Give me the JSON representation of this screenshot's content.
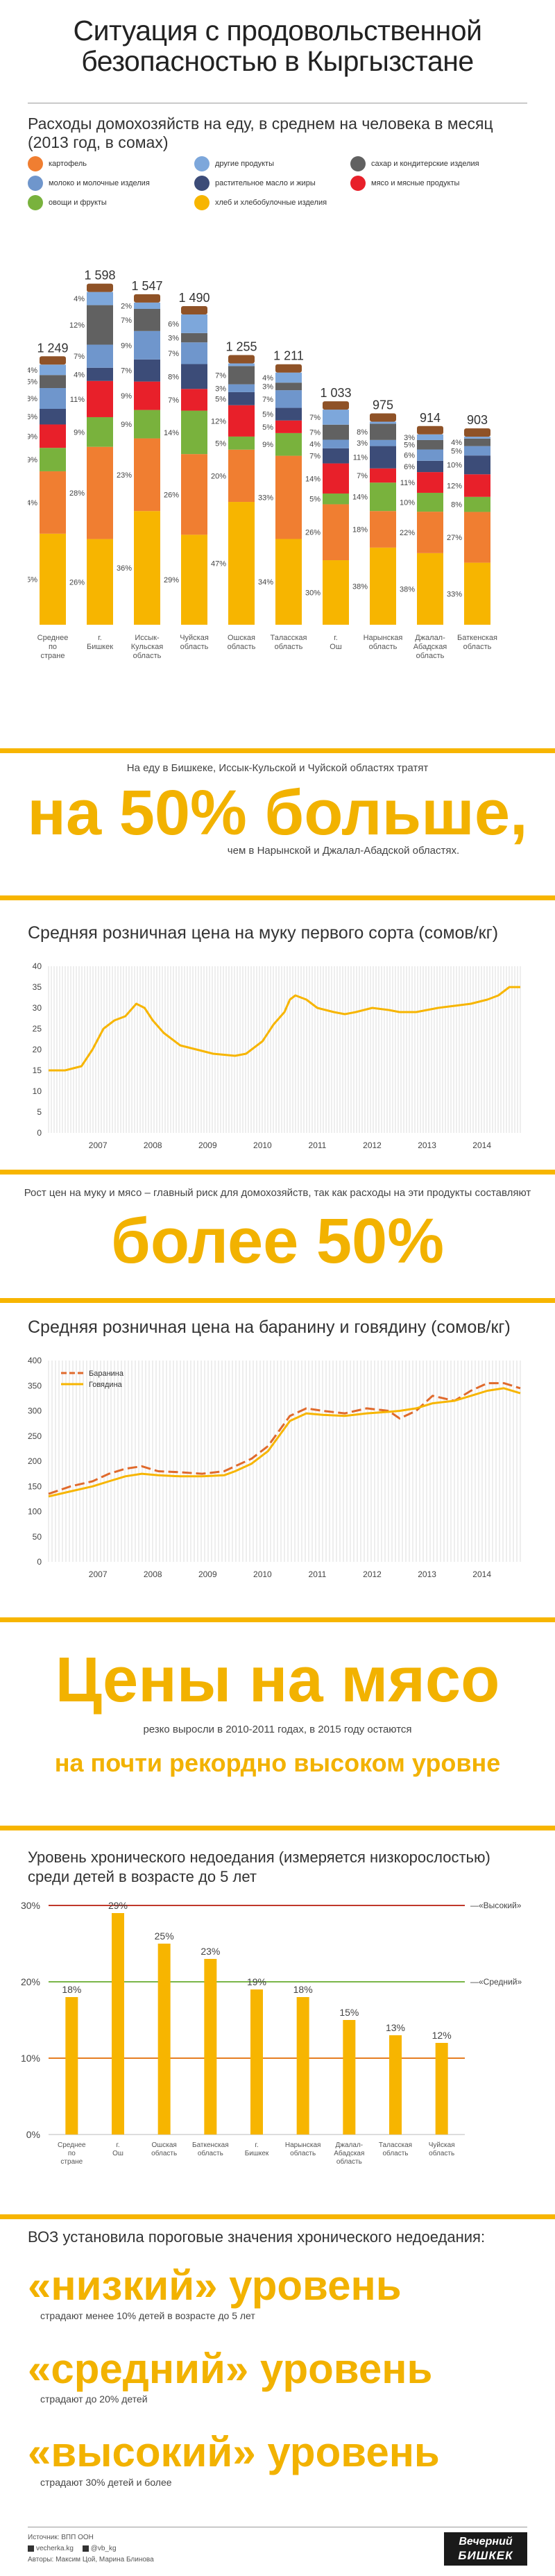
{
  "header": {
    "title_line1": "Ситуация с продовольственной",
    "title_line2": "безопасностью в Кыргызстане"
  },
  "legend": [
    {
      "label": "картофель",
      "color": "#f07e31",
      "icon": "potato-icon"
    },
    {
      "label": "другие продукты",
      "color": "#7da7db",
      "icon": "jar-icon"
    },
    {
      "label": "сахар и кондитерские изделия",
      "color": "#616161",
      "icon": "sugar-icon"
    },
    {
      "label": "молоко и молочные изделия",
      "color": "#6f96cc",
      "icon": "milk-icon"
    },
    {
      "label": "растительное масло и жиры",
      "color": "#3c4c78",
      "icon": "oil-icon"
    },
    {
      "label": "мясо и мясные продукты",
      "color": "#e8202a",
      "icon": "meat-icon"
    },
    {
      "label": "овощи и фрукты",
      "color": "#79b23d",
      "icon": "vegetables-icon"
    },
    {
      "label": "хлеб и хлебобулочные изделия",
      "color": "#f7b500",
      "icon": "bread-icon"
    }
  ],
  "chart_data": [
    {
      "type": "bar",
      "title": "Расходы домохозяйств на еду, в среднем на человека в месяц",
      "subtitle": "(2013 год, в сомах)",
      "categories": [
        "Среднее по стране",
        "г. Бишкек",
        "Иссык-Кульская область",
        "Чуйская область",
        "Ошская область",
        "Таласская область",
        "г. Ош",
        "Нарынская область",
        "Джалал-Абадская область",
        "Баткенская область"
      ],
      "totals": [
        "1 249",
        "1 598",
        "1 547",
        "1 490",
        "1 255",
        "1 211",
        "1 033",
        "975",
        "914",
        "903"
      ],
      "total_values": [
        1249,
        1598,
        1547,
        1490,
        1255,
        1211,
        1033,
        975,
        914,
        903
      ],
      "segment_order_bottom_to_top": [
        "bread",
        "potato",
        "vegetables",
        "meat",
        "oil",
        "milk",
        "sugar",
        "other"
      ],
      "series": [
        {
          "name": "хлеб и хлебобулочные изделия",
          "key": "bread",
          "color": "#f7b500",
          "values": [
            35,
            26,
            36,
            29,
            47,
            34,
            30,
            38,
            38,
            33
          ],
          "labels": [
            "35%",
            "26%",
            "36%",
            "29%",
            "47%",
            "34%",
            "30%",
            "38%",
            "38%",
            "33%"
          ]
        },
        {
          "name": "картофель",
          "key": "potato",
          "color": "#f07e31",
          "values": [
            24,
            28,
            23,
            26,
            20,
            33,
            26,
            18,
            22,
            27
          ],
          "labels": [
            "24%",
            "28%",
            "23%",
            "26%",
            "20%",
            "33%",
            "26%",
            "18%",
            "22%",
            "27%"
          ]
        },
        {
          "name": "овощи и фрукты",
          "key": "vegetables",
          "color": "#79b23d",
          "values": [
            9,
            9,
            9,
            14,
            5,
            9,
            5,
            14,
            10,
            8
          ],
          "labels": [
            "9%",
            "9%",
            "9%",
            "14%",
            "5%",
            "9%",
            "5%",
            "14%",
            "10%",
            "8%"
          ]
        },
        {
          "name": "мясо и мясные продукты",
          "key": "meat",
          "color": "#e8202a",
          "values": [
            9,
            11,
            9,
            7,
            12,
            5,
            14,
            7,
            11,
            12
          ],
          "labels": [
            "9%",
            "11%",
            "9%",
            "7%",
            "12%",
            "5%",
            "14%",
            "7%",
            "11%",
            "12%"
          ]
        },
        {
          "name": "растительное масло и жиры",
          "key": "oil",
          "color": "#3c4c78",
          "values": [
            6,
            4,
            7,
            8,
            5,
            5,
            7,
            11,
            6,
            10
          ],
          "labels": [
            "6%",
            "4%",
            "7%",
            "8%",
            "5%",
            "5%",
            "7%",
            "11%",
            "6%",
            "10%"
          ]
        },
        {
          "name": "молоко и молочные изделия",
          "key": "milk",
          "color": "#6f96cc",
          "values": [
            8,
            7,
            9,
            7,
            3,
            7,
            4,
            3,
            6,
            5
          ],
          "labels": [
            "8%",
            "7%",
            "9%",
            "7%",
            "3%",
            "7%",
            "4%",
            "3%",
            "6%",
            "5%"
          ]
        },
        {
          "name": "сахар и кондитерские изделия",
          "key": "sugar",
          "color": "#616161",
          "values": [
            5,
            12,
            7,
            3,
            7,
            3,
            7,
            8,
            5,
            4
          ],
          "labels": [
            "5%",
            "12%",
            "7%",
            "3%",
            "7%",
            "3%",
            "7%",
            "8%",
            "5%",
            "4%"
          ]
        },
        {
          "name": "другие продукты",
          "key": "other",
          "color": "#7da7db",
          "values": [
            4,
            4,
            2,
            6,
            1,
            4,
            7,
            1,
            3,
            1
          ],
          "labels": [
            "4%",
            "4%",
            "2%",
            "6%",
            "",
            "4%",
            "7%",
            "",
            "3%",
            ""
          ]
        }
      ],
      "top_caps": {
        "color": "#8f5227"
      }
    },
    {
      "type": "line",
      "title": "Средняя розничная цена на муку первого сорта (сомов/кг)",
      "ylim": [
        0,
        40
      ],
      "yticks": [
        "0",
        "5",
        "10",
        "15",
        "20",
        "25",
        "30",
        "35",
        "40"
      ],
      "xticks": [
        "2007",
        "2008",
        "2009",
        "2010",
        "2011",
        "2012",
        "2013",
        "2014",
        "2015"
      ],
      "x_range": [
        2006.6,
        2015.2
      ],
      "series": [
        {
          "color": "#f7b500",
          "x": [
            2006.6,
            2006.9,
            2007.2,
            2007.4,
            2007.6,
            2007.8,
            2008.0,
            2008.2,
            2008.35,
            2008.5,
            2008.7,
            2009.0,
            2009.3,
            2009.6,
            2010.0,
            2010.2,
            2010.5,
            2010.7,
            2010.9,
            2011.0,
            2011.1,
            2011.3,
            2011.5,
            2011.8,
            2012.0,
            2012.2,
            2012.5,
            2012.8,
            2013.0,
            2013.3,
            2013.5,
            2013.7,
            2014.0,
            2014.3,
            2014.6,
            2014.8,
            2015.0,
            2015.2
          ],
          "y": [
            15,
            15,
            16,
            20,
            25,
            27,
            28,
            31,
            30,
            27,
            24,
            21,
            20,
            19,
            18.5,
            19,
            22,
            26,
            29,
            32,
            33,
            32,
            30,
            29,
            28.5,
            29,
            30,
            29.5,
            29,
            29,
            29.5,
            30,
            30.5,
            31,
            32,
            33,
            35,
            35
          ]
        }
      ]
    },
    {
      "type": "line",
      "title": "Средняя розничная цена на баранину и говядину (сомов/кг)",
      "ylim": [
        0,
        400
      ],
      "yticks": [
        "0",
        "50",
        "100",
        "150",
        "200",
        "250",
        "300",
        "350",
        "400"
      ],
      "xticks": [
        "2007",
        "2008",
        "2009",
        "2010",
        "2011",
        "2012",
        "2013",
        "2014",
        "2015"
      ],
      "x_range": [
        2006.6,
        2015.2
      ],
      "legend_position": "top-left",
      "series": [
        {
          "name": "Баранина",
          "color": "#e06a2c",
          "dashed": true,
          "x": [
            2006.6,
            2007.0,
            2007.4,
            2007.7,
            2008.0,
            2008.3,
            2008.6,
            2009.0,
            2009.4,
            2009.8,
            2010.0,
            2010.3,
            2010.6,
            2010.8,
            2011.0,
            2011.3,
            2011.6,
            2012.0,
            2012.4,
            2012.8,
            2013.0,
            2013.3,
            2013.6,
            2014.0,
            2014.3,
            2014.6,
            2014.9,
            2015.2
          ],
          "y": [
            135,
            150,
            160,
            175,
            185,
            190,
            180,
            178,
            175,
            180,
            190,
            205,
            230,
            260,
            290,
            305,
            300,
            295,
            305,
            300,
            285,
            300,
            330,
            320,
            340,
            355,
            355,
            345
          ]
        },
        {
          "name": "Говядина",
          "color": "#f7b500",
          "dashed": false,
          "x": [
            2006.6,
            2007.0,
            2007.4,
            2007.7,
            2008.0,
            2008.3,
            2008.6,
            2009.0,
            2009.4,
            2009.8,
            2010.0,
            2010.3,
            2010.6,
            2010.8,
            2011.0,
            2011.3,
            2011.6,
            2012.0,
            2012.4,
            2012.8,
            2013.0,
            2013.3,
            2013.6,
            2014.0,
            2014.3,
            2014.6,
            2014.9,
            2015.2
          ],
          "y": [
            130,
            140,
            150,
            160,
            170,
            175,
            172,
            170,
            170,
            172,
            180,
            195,
            220,
            250,
            280,
            295,
            292,
            290,
            295,
            298,
            300,
            305,
            315,
            320,
            330,
            340,
            345,
            335
          ]
        }
      ]
    },
    {
      "type": "bar",
      "title": "Уровень хронического недоедания (измеряется низкорослостью) среди детей в возрасте до 5 лет",
      "categories": [
        "Среднее по стране",
        "г. Ош",
        "Ошская область",
        "Баткенская область",
        "г. Бишкек",
        "Нарынская область",
        "Джалал-Абадская область",
        "Таласская область",
        "Чуйская область"
      ],
      "values": [
        18,
        29,
        25,
        23,
        19,
        18,
        15,
        13,
        12
      ],
      "labels": [
        "18%",
        "29%",
        "25%",
        "23%",
        "19%",
        "18%",
        "15%",
        "13%",
        "12%"
      ],
      "ylim": [
        0,
        30
      ],
      "yticks": [
        "0%",
        "10%",
        "20%",
        "30%"
      ],
      "thresholds": [
        {
          "value": 30,
          "label": "«Высокий»",
          "color": "#c0392b"
        },
        {
          "value": 20,
          "label": "«Средний»",
          "color": "#7ab648"
        },
        {
          "value": 10,
          "label": "",
          "color": "#e67e22"
        }
      ]
    }
  ],
  "callout1": {
    "intro": "На еду в Бишкеке, Иссык-Кульской и Чуйской областях тратят",
    "big": "на 50% больше,",
    "outro": "чем в Нарынской и Джалал-Абадской областях."
  },
  "callout2": {
    "intro": "Рост цен на муку и мясо – главный риск для домохозяйств, так как расходы на эти продукты составляют",
    "big": "более 50%"
  },
  "callout3": {
    "big": "Цены на мясо",
    "mid": "резко выросли в 2010-2011 годах, в 2015 году остаются",
    "tail": "на почти рекордно высоком уровне"
  },
  "who": {
    "intro": "ВОЗ установила пороговые значения хронического недоедания:",
    "levels": [
      {
        "title": "«низкий» уровень",
        "note": "страдают менее 10% детей в возрасте до 5 лет"
      },
      {
        "title": "«средний» уровень",
        "note": "страдают до 20% детей"
      },
      {
        "title": "«высокий» уровень",
        "note": "страдают 30% детей и более"
      }
    ]
  },
  "footer": {
    "source": "Источник: ВПП ООН",
    "site": "vecherka.kg",
    "twitter": "@vb_kg",
    "authors": "Авторы: Максим Цой, Марина Блинова",
    "logo_line1": "Вечерний",
    "logo_line2": "БИШКЕК"
  }
}
